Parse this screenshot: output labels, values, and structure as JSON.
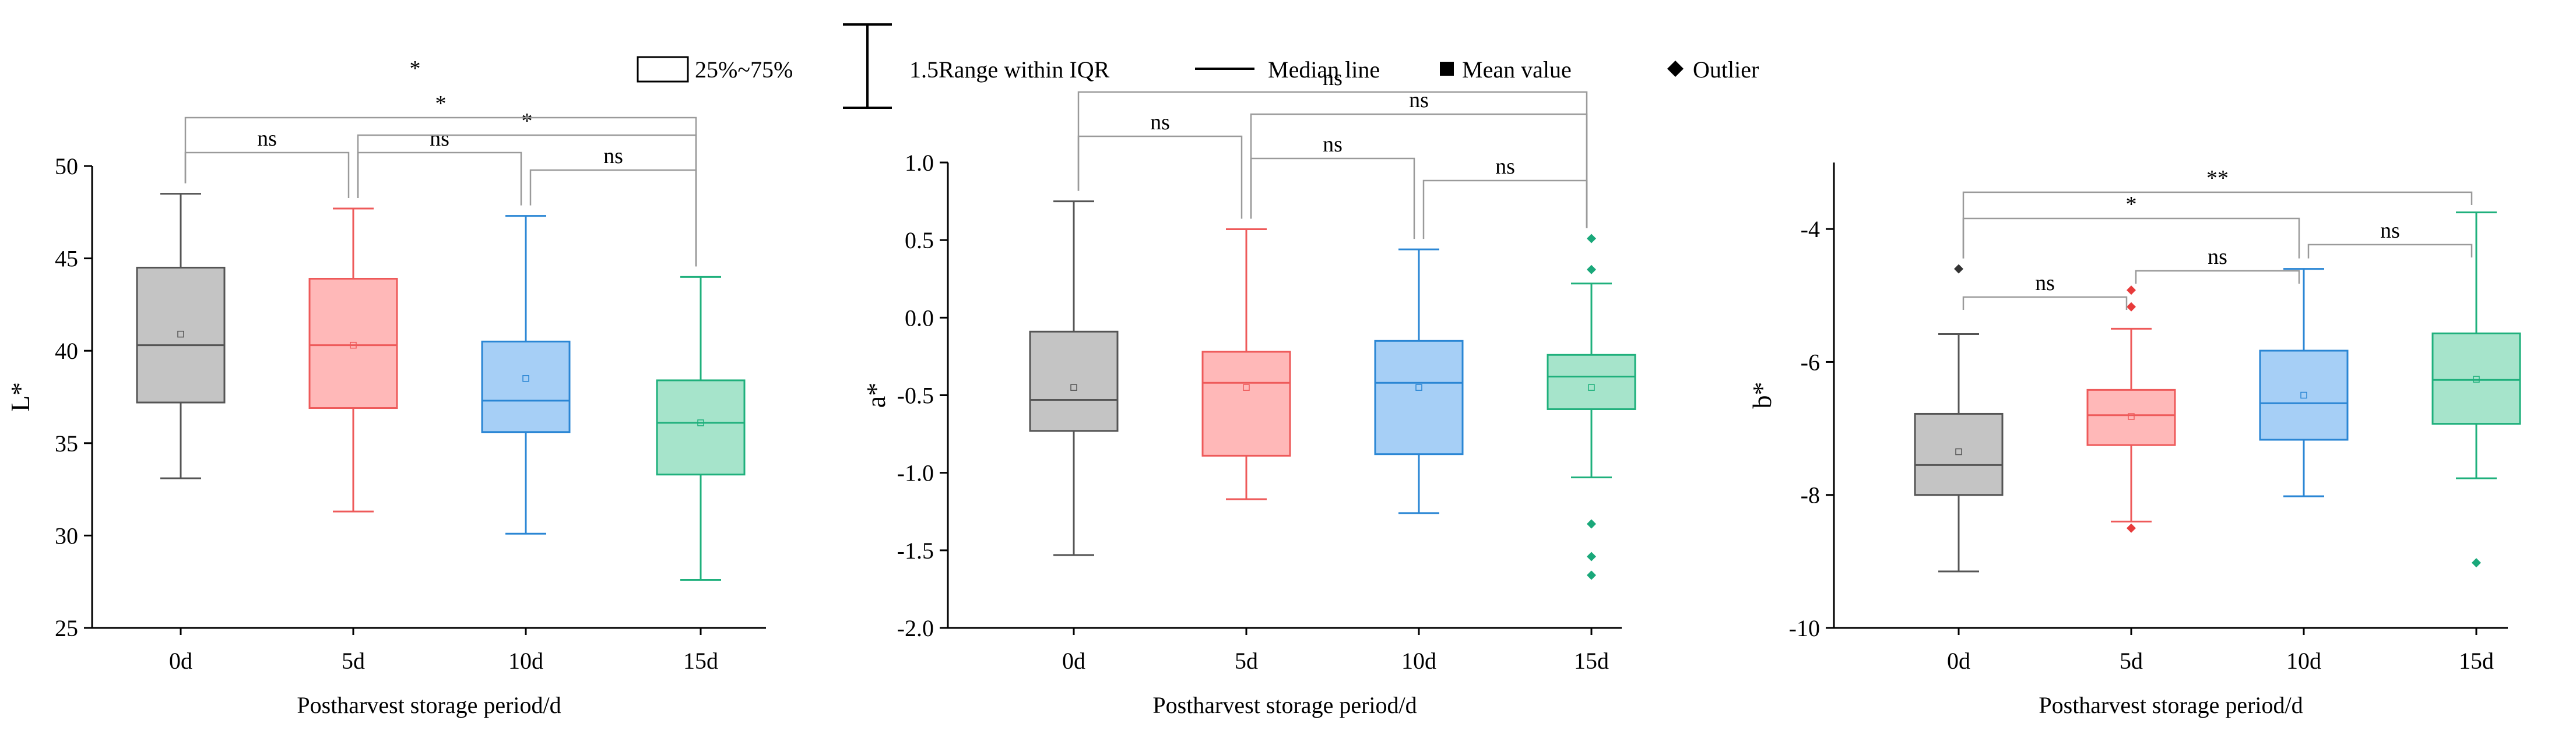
{
  "legend": {
    "significance_star": "*",
    "box_label": "25%~75%",
    "whisker_label": "1.5Range within IQR",
    "median_label": "Median line",
    "mean_label": "Mean value",
    "outlier_label": "Outlier"
  },
  "colors": {
    "0d": {
      "stroke": "#555555",
      "fill": "#c4c4c4"
    },
    "5d": {
      "stroke": "#ee5a5a",
      "fill": "#ffb8b8"
    },
    "10d": {
      "stroke": "#2a86d4",
      "fill": "#a6cff6"
    },
    "15d": {
      "stroke": "#1fb07c",
      "fill": "#a6e4cb"
    }
  },
  "chart_data": [
    {
      "type": "box",
      "xlabel": "Postharvest storage period/d",
      "ylabel": "L*",
      "ylim": [
        25,
        50
      ],
      "yticks": [
        25,
        30,
        35,
        40,
        45,
        50
      ],
      "categories": [
        "0d",
        "5d",
        "10d",
        "15d"
      ],
      "boxes": [
        {
          "category": "0d",
          "whisker_low": 33.1,
          "q1": 37.2,
          "median": 40.3,
          "q3": 44.5,
          "whisker_high": 48.5,
          "mean": 40.9,
          "outliers": []
        },
        {
          "category": "5d",
          "whisker_low": 31.3,
          "q1": 36.9,
          "median": 40.3,
          "q3": 43.9,
          "whisker_high": 47.7,
          "mean": 40.3,
          "outliers": []
        },
        {
          "category": "10d",
          "whisker_low": 30.1,
          "q1": 35.6,
          "median": 37.3,
          "q3": 40.5,
          "whisker_high": 47.3,
          "mean": 38.5,
          "outliers": []
        },
        {
          "category": "15d",
          "whisker_low": 27.6,
          "q1": 33.3,
          "median": 36.1,
          "q3": 38.4,
          "whisker_high": 44.0,
          "mean": 36.1,
          "outliers": []
        }
      ],
      "brackets": [
        {
          "from": "0d",
          "to": "5d",
          "label": "ns",
          "level": 1
        },
        {
          "from": "5d",
          "to": "10d",
          "label": "ns",
          "level": 1
        },
        {
          "from": "10d",
          "to": "15d",
          "label": "ns",
          "level": 0
        },
        {
          "from": "5d",
          "to": "15d",
          "label": "*",
          "level": 2
        },
        {
          "from": "0d",
          "to": "15d",
          "label": "*",
          "level": 3
        }
      ]
    },
    {
      "type": "box",
      "xlabel": "Postharvest storage period/d",
      "ylabel": "a*",
      "ylim": [
        -2.0,
        1.0
      ],
      "yticks": [
        "-2.0",
        "-1.5",
        "-1.0",
        "-0.5",
        "0.0",
        "0.5",
        "1.0"
      ],
      "categories": [
        "0d",
        "5d",
        "10d",
        "15d"
      ],
      "boxes": [
        {
          "category": "0d",
          "whisker_low": -1.53,
          "q1": -0.73,
          "median": -0.53,
          "q3": -0.09,
          "whisker_high": 0.75,
          "mean": -0.45,
          "outliers": []
        },
        {
          "category": "5d",
          "whisker_low": -1.17,
          "q1": -0.89,
          "median": -0.42,
          "q3": -0.22,
          "whisker_high": 0.57,
          "mean": -0.45,
          "outliers": []
        },
        {
          "category": "10d",
          "whisker_low": -1.26,
          "q1": -0.88,
          "median": -0.42,
          "q3": -0.15,
          "whisker_high": 0.44,
          "mean": -0.45,
          "outliers": []
        },
        {
          "category": "15d",
          "whisker_low": -1.03,
          "q1": -0.59,
          "median": -0.38,
          "q3": -0.24,
          "whisker_high": 0.22,
          "mean": -0.45,
          "outliers": [
            0.51,
            0.31,
            -1.33,
            -1.54,
            -1.66
          ]
        }
      ],
      "brackets": [
        {
          "from": "0d",
          "to": "5d",
          "label": "ns",
          "level": 2
        },
        {
          "from": "5d",
          "to": "10d",
          "label": "ns",
          "level": 1
        },
        {
          "from": "10d",
          "to": "15d",
          "label": "ns",
          "level": 0
        },
        {
          "from": "5d",
          "to": "15d",
          "label": "ns",
          "level": 3
        },
        {
          "from": "0d",
          "to": "15d",
          "label": "ns",
          "level": 4
        }
      ]
    },
    {
      "type": "box",
      "xlabel": "Postharvest storage period/d",
      "ylabel": "b*",
      "ylim": [
        -10,
        -3
      ],
      "yticks": [
        -10,
        -8,
        -6,
        -4
      ],
      "categories": [
        "0d",
        "5d",
        "10d",
        "15d"
      ],
      "boxes": [
        {
          "category": "0d",
          "whisker_low": -9.15,
          "q1": -8.0,
          "median": -7.55,
          "q3": -6.78,
          "whisker_high": -5.58,
          "mean": -7.35,
          "outliers": [
            -4.6
          ]
        },
        {
          "category": "5d",
          "whisker_low": -8.4,
          "q1": -7.25,
          "median": -6.8,
          "q3": -6.42,
          "whisker_high": -5.5,
          "mean": -6.82,
          "outliers": [
            -4.92,
            -5.17,
            -8.5
          ]
        },
        {
          "category": "10d",
          "whisker_low": -8.02,
          "q1": -7.17,
          "median": -6.62,
          "q3": -5.83,
          "whisker_high": -4.6,
          "mean": -6.5,
          "outliers": []
        },
        {
          "category": "15d",
          "whisker_low": -7.75,
          "q1": -6.93,
          "median": -6.27,
          "q3": -5.57,
          "whisker_high": -3.75,
          "mean": -6.26,
          "outliers": [
            -9.02
          ]
        }
      ],
      "brackets": [
        {
          "from": "0d",
          "to": "5d",
          "label": "ns",
          "level": 0
        },
        {
          "from": "5d",
          "to": "10d",
          "label": "ns",
          "level": 1
        },
        {
          "from": "10d",
          "to": "15d",
          "label": "ns",
          "level": 2
        },
        {
          "from": "0d",
          "to": "10d",
          "label": "*",
          "level": 3
        },
        {
          "from": "0d",
          "to": "15d",
          "label": "**",
          "level": 4
        }
      ]
    }
  ]
}
